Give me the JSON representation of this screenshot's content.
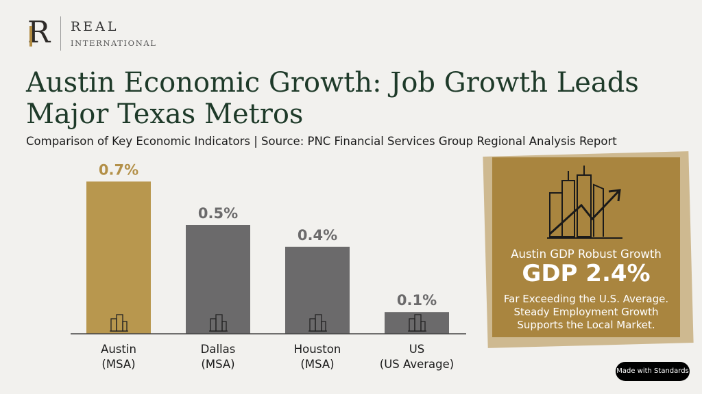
{
  "brand": {
    "logo_letter": "R",
    "name": "REAL",
    "sub": "INTERNATIONAL"
  },
  "header": {
    "title": "Austin Economic Growth: Job Growth Leads Major Texas Metros",
    "subtitle": "Comparison of Key Economic Indicators | Source: PNC Financial Services Group Regional Analysis Report"
  },
  "chart_data": {
    "type": "bar",
    "title": "Job Growth",
    "categories": [
      [
        "Austin",
        "(MSA)"
      ],
      [
        "Dallas",
        "(MSA)"
      ],
      [
        "Houston",
        "(MSA)"
      ],
      [
        "US",
        "(US Average)"
      ]
    ],
    "values": [
      0.7,
      0.5,
      0.4,
      0.1
    ],
    "value_labels": [
      "0.7%",
      "0.5%",
      "0.4%",
      "0.1%"
    ],
    "ylim": [
      0,
      0.8
    ],
    "colors": [
      "#b8974e",
      "#6b6a6b",
      "#6b6a6b",
      "#6b6a6b"
    ],
    "label_colors": [
      "#b39048",
      "#6b6a6b",
      "#6b6a6b",
      "#6b6a6b"
    ],
    "grid": false
  },
  "panel": {
    "icon": "city-growth-icon",
    "heading": "Austin GDP Robust Growth",
    "big": "GDP 2.4%",
    "body": [
      "Far Exceeding the U.S. Average.",
      "Steady Employment Growth",
      "Supports the Local Market."
    ]
  },
  "badge": "Made with Standards"
}
